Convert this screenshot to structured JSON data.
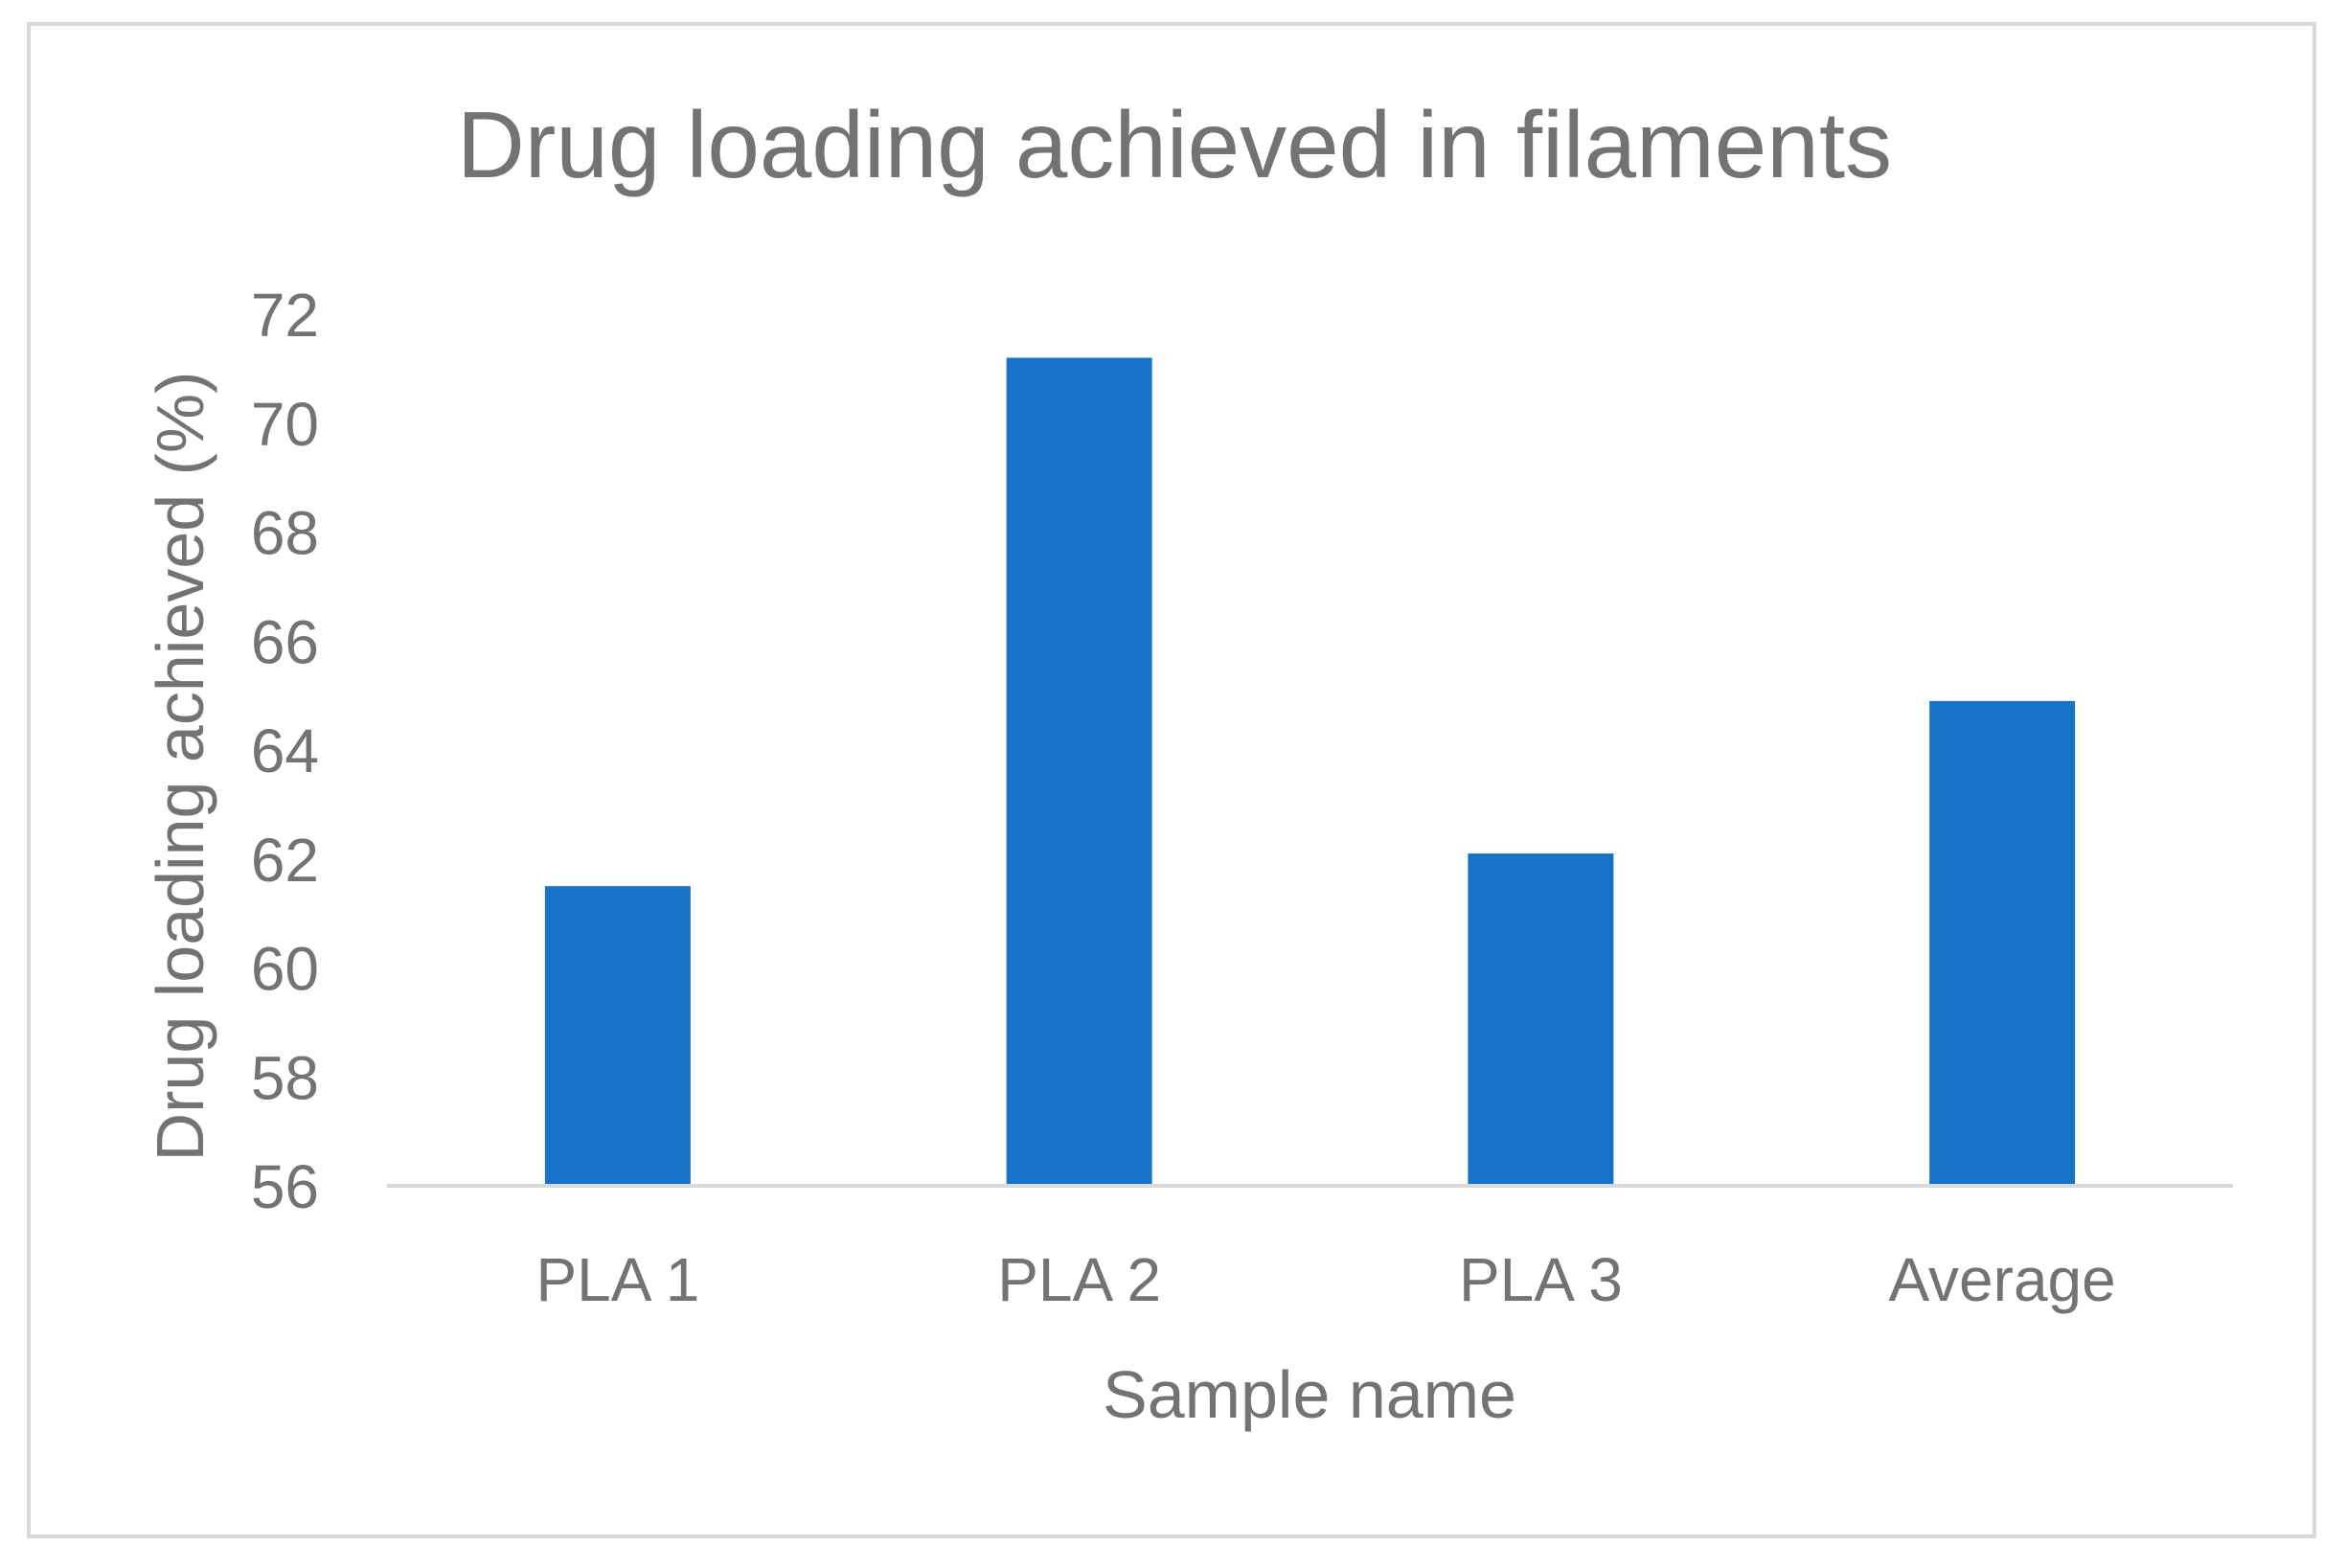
{
  "chart_data": {
    "type": "bar",
    "title": "Drug loading achieved in filaments",
    "xlabel": "Sample name",
    "ylabel": "Drug loading achieved (%)",
    "categories": [
      "PLA 1",
      "PLA 2",
      "PLA 3",
      "Average"
    ],
    "values": [
      61.5,
      71.2,
      62.1,
      64.9
    ],
    "ylim": [
      56,
      72
    ],
    "yticks": [
      56,
      58,
      60,
      62,
      64,
      66,
      68,
      70,
      72
    ],
    "grid": false,
    "legend": "none",
    "bar_color": "#1773c8",
    "axis_color": "#d9d9d9",
    "text_color": "#737373"
  }
}
